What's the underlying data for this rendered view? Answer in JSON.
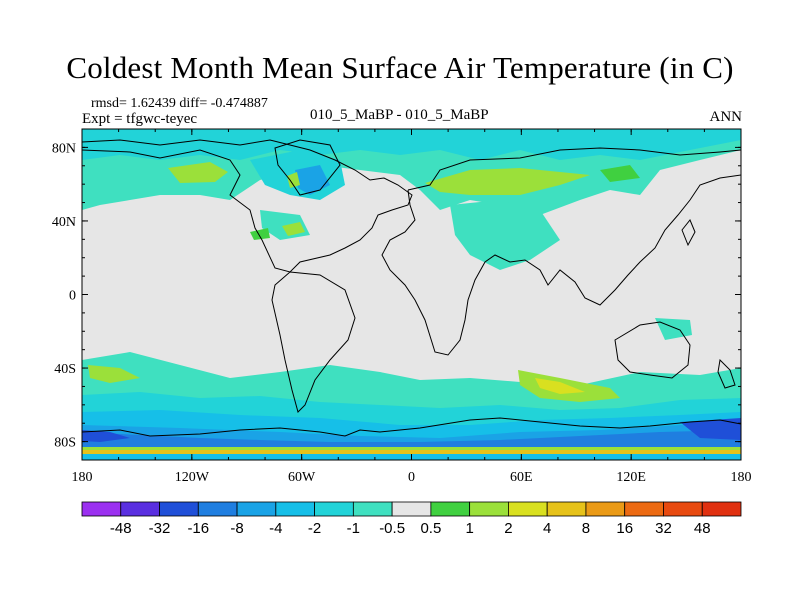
{
  "title": "Coldest Month Mean Surface Air Temperature (in C)",
  "stats": "rmsd= 1.62439 diff= -0.474887",
  "expt": "Expt = tfgwc-teyec",
  "center_label": "010_5_MaBP - 010_5_MaBP",
  "season": "ANN",
  "lat_labels": [
    "80N",
    "40N",
    "0",
    "40S",
    "80S"
  ],
  "lon_labels": [
    "180",
    "120W",
    "60W",
    "0",
    "60E",
    "120E",
    "180"
  ],
  "colorbar": {
    "labels": [
      "-48",
      "-32",
      "-16",
      "-8",
      "-4",
      "-2",
      "-1",
      "-0.5",
      "0.5",
      "1",
      "2",
      "4",
      "8",
      "16",
      "32",
      "48"
    ],
    "colors": [
      "#9b30f0",
      "#5a2fe0",
      "#1f4fd8",
      "#1f7ee0",
      "#1aa3e6",
      "#16bfe8",
      "#22d3d8",
      "#3fe0c0",
      "#e6e6e6",
      "#40d040",
      "#9be03a",
      "#d9e020",
      "#e6c21a",
      "#ea9a16",
      "#ec6a12",
      "#e84a10",
      "#e03010"
    ]
  },
  "colors": {
    "land_neutral": "#e6e6e6",
    "coast": "#000000"
  }
}
